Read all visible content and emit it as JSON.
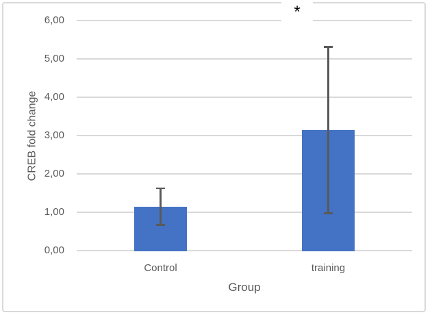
{
  "chart_data": {
    "type": "bar",
    "title": "",
    "categories": [
      "Control",
      "training"
    ],
    "values": [
      1.15,
      3.15
    ],
    "errors": [
      0.48,
      2.17
    ],
    "xlabel": "Group",
    "ylabel": "CREB fold change",
    "ylim": [
      0,
      6
    ],
    "ytick_step": 1,
    "ytick_labels": [
      "0,00",
      "1,00",
      "2,00",
      "3,00",
      "4,00",
      "5,00",
      "6,00"
    ],
    "grid": "horizontal",
    "legend": "none",
    "annotation": {
      "text": "*",
      "color": "#000000",
      "note": "significance marker above training bar"
    },
    "bar_color": "#4472C4",
    "error_bar_color": "#595959",
    "gridline_color": "#D9D9D9",
    "axis_text_color": "#595959",
    "frame_color": "#D9D9D9"
  }
}
